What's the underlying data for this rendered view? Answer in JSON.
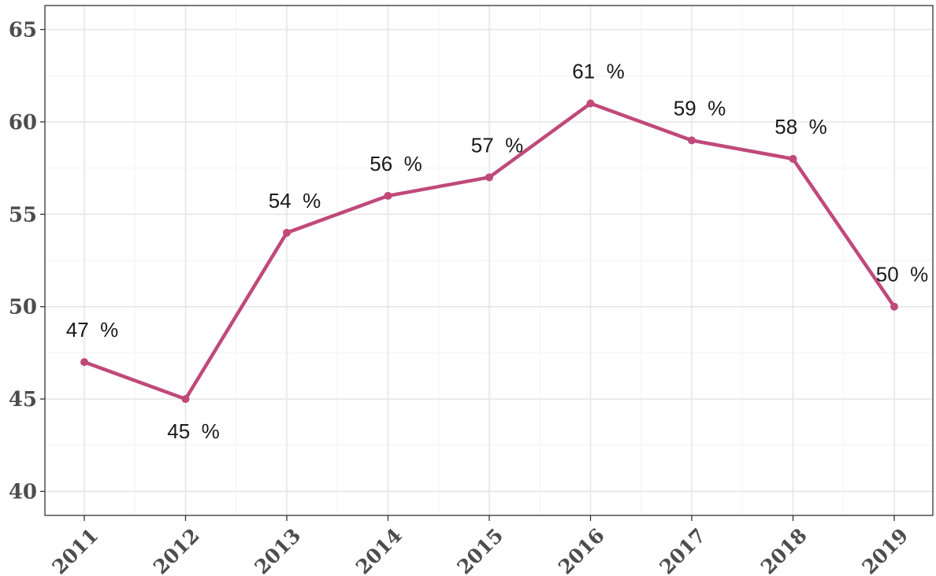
{
  "chart_data": {
    "type": "line",
    "title": "",
    "xlabel": "",
    "ylabel": "",
    "categories": [
      "2011",
      "2012",
      "2013",
      "2014",
      "2015",
      "2016",
      "2017",
      "2018",
      "2019"
    ],
    "series": [
      {
        "values": [
          47,
          45,
          54,
          56,
          57,
          61,
          59,
          58,
          50
        ],
        "color": "#c0497a"
      }
    ],
    "data_labels": [
      "47  %",
      "45  %",
      "54  %",
      "56  %",
      "57  %",
      "61  %",
      "59  %",
      "58  %",
      "50  %"
    ],
    "label_position": [
      "above",
      "below",
      "above",
      "above",
      "above",
      "above",
      "above",
      "above",
      "above"
    ],
    "ylim": [
      38.7,
      66.3
    ],
    "yticks": [
      40,
      45,
      50,
      55,
      60,
      65
    ],
    "grid": true,
    "legend": "none"
  }
}
